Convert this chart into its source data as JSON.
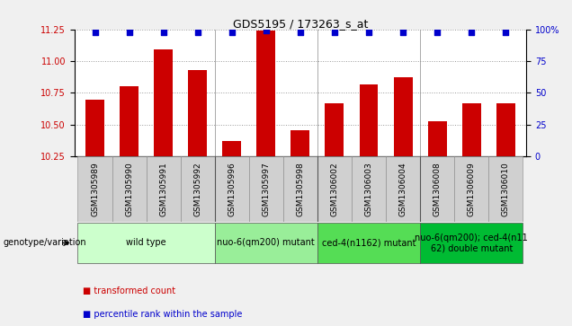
{
  "title": "GDS5195 / 173263_s_at",
  "samples": [
    "GSM1305989",
    "GSM1305990",
    "GSM1305991",
    "GSM1305992",
    "GSM1305996",
    "GSM1305997",
    "GSM1305998",
    "GSM1306002",
    "GSM1306003",
    "GSM1306004",
    "GSM1306008",
    "GSM1306009",
    "GSM1306010"
  ],
  "bar_values": [
    10.7,
    10.8,
    11.09,
    10.93,
    10.37,
    11.24,
    10.46,
    10.67,
    10.82,
    10.87,
    10.53,
    10.67,
    10.67
  ],
  "percentile_values": [
    98,
    98,
    98,
    98,
    98,
    99,
    98,
    98,
    98,
    98,
    98,
    98,
    98
  ],
  "ylim_left": [
    10.25,
    11.25
  ],
  "ylim_right": [
    0,
    100
  ],
  "yticks_left": [
    10.25,
    10.5,
    10.75,
    11.0,
    11.25
  ],
  "yticks_right": [
    0,
    25,
    50,
    75,
    100
  ],
  "bar_color": "#CC0000",
  "dot_color": "#0000CC",
  "fig_bg_color": "#F0F0F0",
  "plot_bg_color": "#FFFFFF",
  "xtick_bg_color": "#D0D0D0",
  "group_colors": [
    "#CCFFCC",
    "#99EE99",
    "#55DD55",
    "#00BB33"
  ],
  "group_labels": [
    "wild type",
    "nuo-6(qm200) mutant",
    "ced-4(n1162) mutant",
    "nuo-6(qm200); ced-4(n11\n62) double mutant"
  ],
  "group_ranges": [
    [
      0,
      3
    ],
    [
      4,
      6
    ],
    [
      7,
      9
    ],
    [
      10,
      12
    ]
  ],
  "legend_label_bar": "transformed count",
  "legend_label_dot": "percentile rank within the sample",
  "xlabel_genotype": "genotype/variation",
  "dotted_line_color": "#999999",
  "dot_size": 25,
  "bar_width": 0.55,
  "title_fontsize": 9,
  "tick_fontsize": 7,
  "group_fontsize": 7
}
